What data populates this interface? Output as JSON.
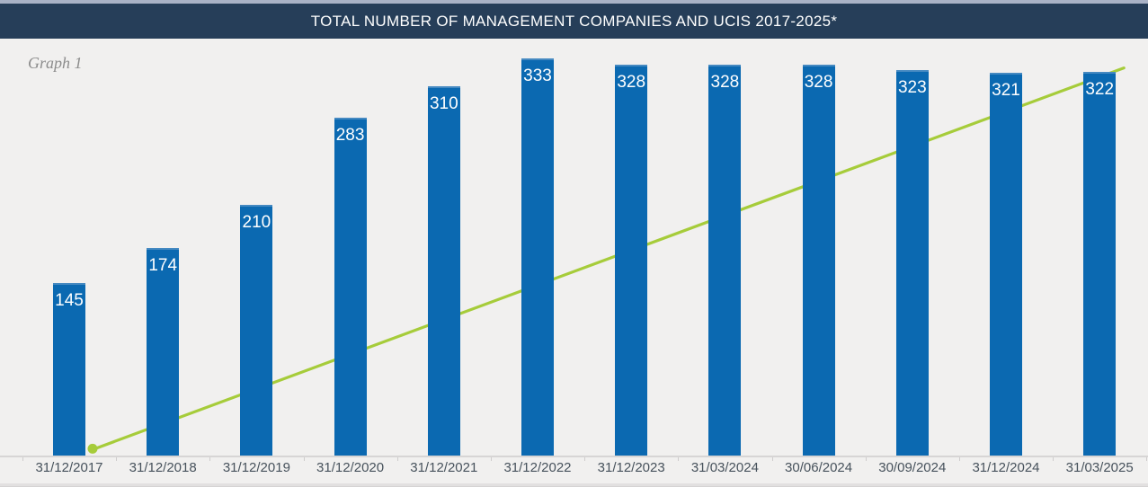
{
  "header": {
    "title": "TOTAL NUMBER OF MANAGEMENT COMPANIES AND UCIS 2017-2025*"
  },
  "graph_label": "Graph 1",
  "chart_data": {
    "type": "bar",
    "title": "TOTAL NUMBER OF MANAGEMENT COMPANIES AND UCIS 2017-2025*",
    "categories": [
      "31/12/2017",
      "31/12/2018",
      "31/12/2019",
      "31/12/2020",
      "31/12/2021",
      "31/12/2022",
      "31/12/2023",
      "31/03/2024",
      "30/06/2024",
      "30/09/2024",
      "31/12/2024",
      "31/03/2025"
    ],
    "series": [
      {
        "name": "management-companies-bars",
        "type": "bar",
        "values": [
          145,
          174,
          210,
          283,
          310,
          333,
          328,
          328,
          328,
          323,
          321,
          322
        ],
        "color": "#0b69b1",
        "data_labels": true
      },
      {
        "name": "trend-line",
        "type": "line",
        "color": "#a6cc3a",
        "start": {
          "category": "31/12/2017",
          "value": 5
        },
        "end": {
          "category": "31/03/2025",
          "value": 325
        },
        "start_marker": "dot"
      }
    ],
    "xlabel": "",
    "ylabel": "",
    "ylim": [
      0,
      340
    ],
    "grid": false,
    "legend": false
  },
  "colors": {
    "bar": "#0b69b1",
    "bar_highlight": "#4589c1",
    "line": "#a6cc3a",
    "header_bg": "#263e59",
    "header_text": "#ffffff",
    "background": "#f1f0ef",
    "axis_line": "#d7d5d5",
    "x_label": "#47525c",
    "graph_label": "#8c8c8c",
    "top_strip": "#a9b2c6"
  }
}
